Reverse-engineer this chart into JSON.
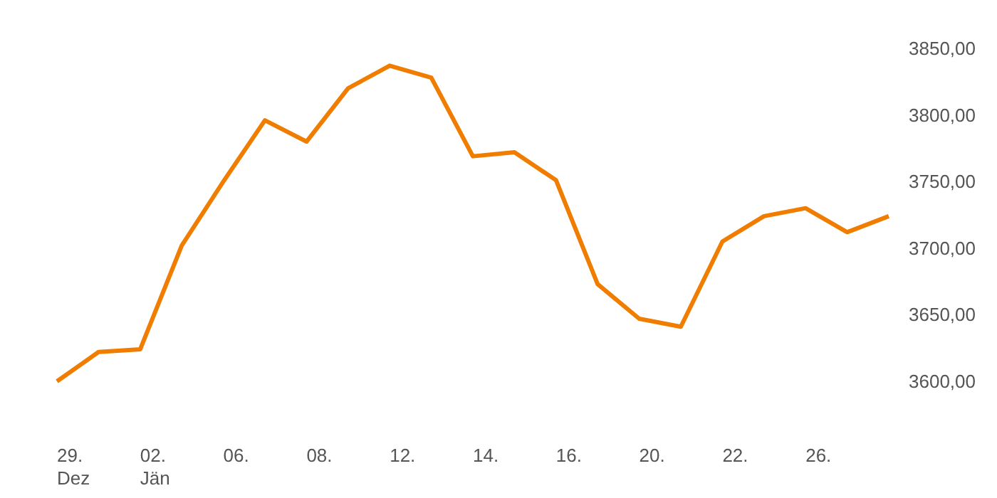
{
  "chart_data": {
    "type": "line",
    "categories": [
      "29.\nDez",
      null,
      "02.\nJän",
      null,
      "06.",
      null,
      "08.",
      null,
      "12.",
      null,
      "14.",
      null,
      "16.",
      null,
      "20.",
      null,
      "22.",
      null,
      "26.",
      null,
      null
    ],
    "series": [
      {
        "color": "#f07d00",
        "values": [
          3600,
          3622,
          3624,
          3702,
          3750,
          3796,
          3780,
          3820,
          3837,
          3828,
          3769,
          3772,
          3751,
          3673,
          3647,
          3641,
          3705,
          3724,
          3730,
          3712,
          3724
        ]
      }
    ],
    "ylim": [
      3600,
      3850
    ],
    "yticks": [
      {
        "value": 3600,
        "label": "3600,00"
      },
      {
        "value": 3650,
        "label": "3650,00"
      },
      {
        "value": 3700,
        "label": "3700,00"
      },
      {
        "value": 3750,
        "label": "3750,00"
      },
      {
        "value": 3800,
        "label": "3800,00"
      },
      {
        "value": 3850,
        "label": "3850,00"
      }
    ],
    "grid": false,
    "marker": "none",
    "line_style": "solid"
  }
}
